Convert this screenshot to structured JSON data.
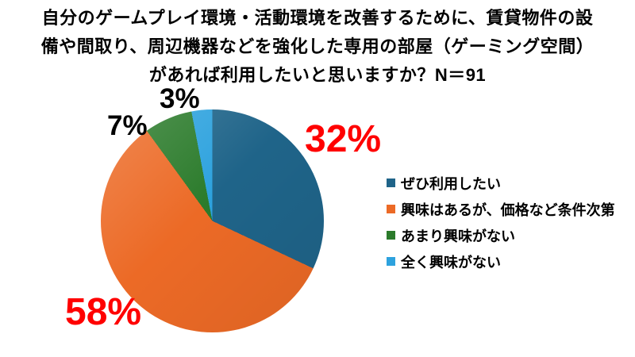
{
  "title": {
    "line1": "自分のゲームプレイ環境・活動環境を改善するために、賃貸物件の設",
    "line2": "備や間取り、周辺機器などを強化した専用の部屋（ゲーミング空間）",
    "line3": "があれば利用したいと思いますか？N＝91"
  },
  "chart_data": {
    "type": "pie",
    "title": "自分のゲームプレイ環境・活動環境を改善するために、賃貸物件の設備や間取り、周辺機器などを強化した専用の部屋（ゲーミング空間）があれば利用したいと思いますか？N＝91",
    "sample_size_label": "N＝91",
    "start_angle_deg": 0,
    "direction": "clockwise",
    "legend_position": "right",
    "slices": [
      {
        "label": "ぜひ利用したい",
        "value_pct": 32,
        "color": "#1f6489",
        "value_label": "32%",
        "value_label_color": "#ff0000"
      },
      {
        "label": "興味はあるが、価格など条件次第",
        "value_pct": 58,
        "color": "#ec6a26",
        "value_label": "58%",
        "value_label_color": "#ff0000"
      },
      {
        "label": "あまり興味がない",
        "value_pct": 7,
        "color": "#2b7b2b",
        "value_label": "7%",
        "value_label_color": "#000000"
      },
      {
        "label": "全く興味がない",
        "value_pct": 3,
        "color": "#2da2de",
        "value_label": "3%",
        "value_label_color": "#000000"
      }
    ]
  }
}
